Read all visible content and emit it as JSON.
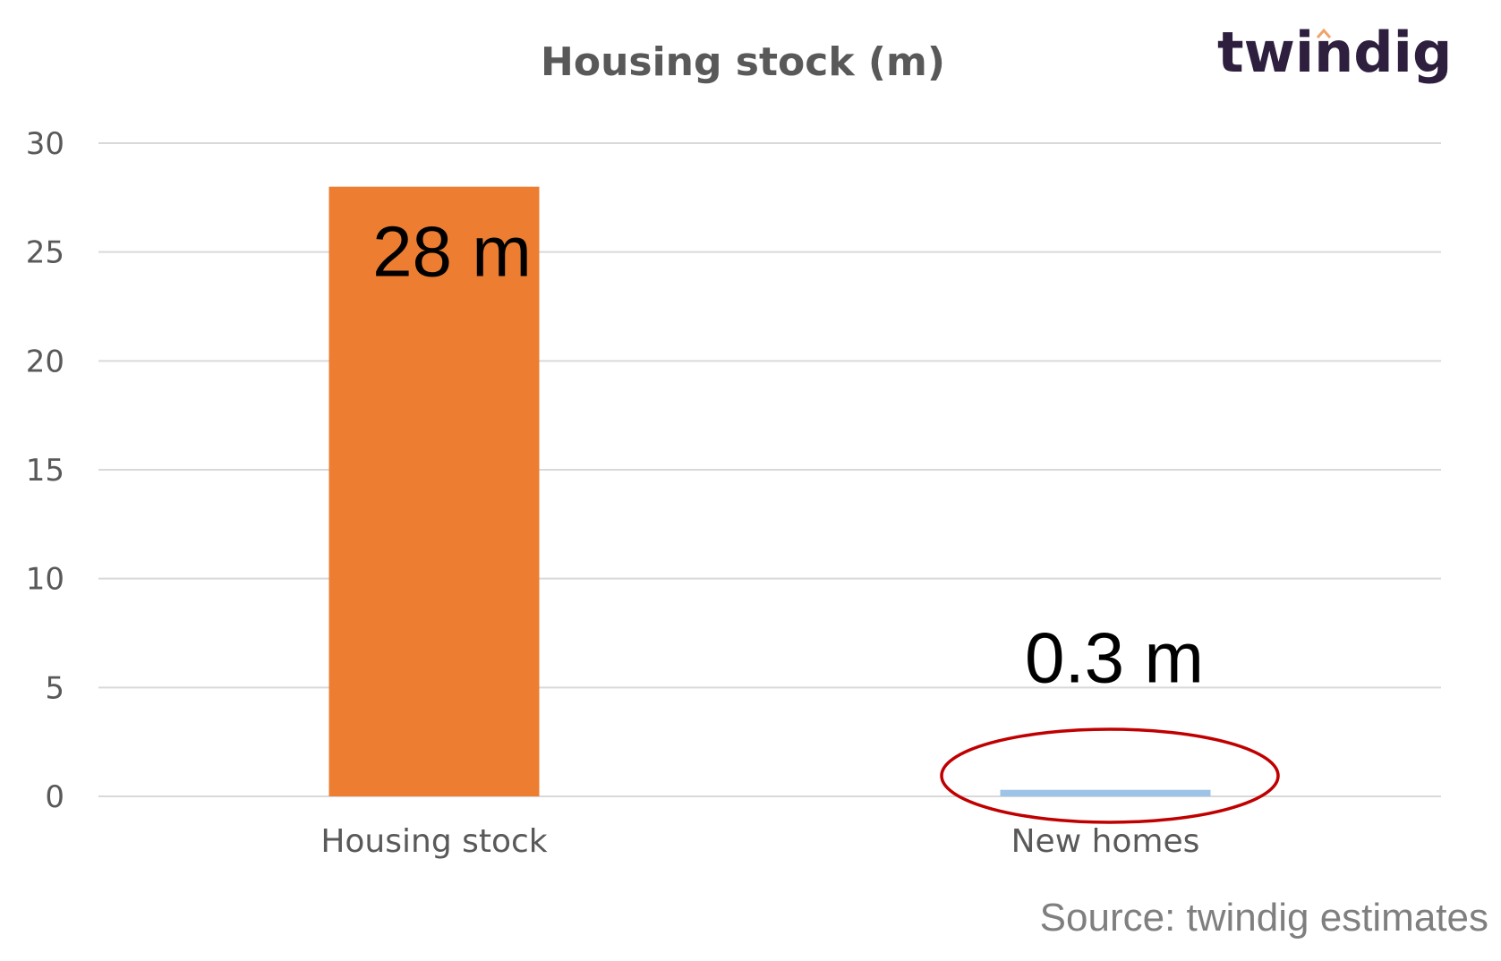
{
  "logo": {
    "text": "twindig",
    "text_color": "#2e1f3f",
    "accent_color": "#f0a36a"
  },
  "source": "Source: twindig estimates",
  "chart_data": {
    "type": "bar",
    "title": "Housing stock (m)",
    "categories": [
      "Housing stock",
      "New homes"
    ],
    "values": [
      28,
      0.3
    ],
    "bar_colors": [
      "#ed7d31",
      "#9dc3e6"
    ],
    "data_labels": [
      "28 m",
      "0.3 m"
    ],
    "xlabel": "",
    "ylabel": "",
    "ylim": [
      0,
      30
    ],
    "yticks": [
      0,
      5,
      10,
      15,
      20,
      25,
      30
    ],
    "grid": true,
    "legend": "none",
    "annotation": {
      "shape": "ellipse",
      "target": "New homes",
      "color": "#c00000"
    }
  }
}
